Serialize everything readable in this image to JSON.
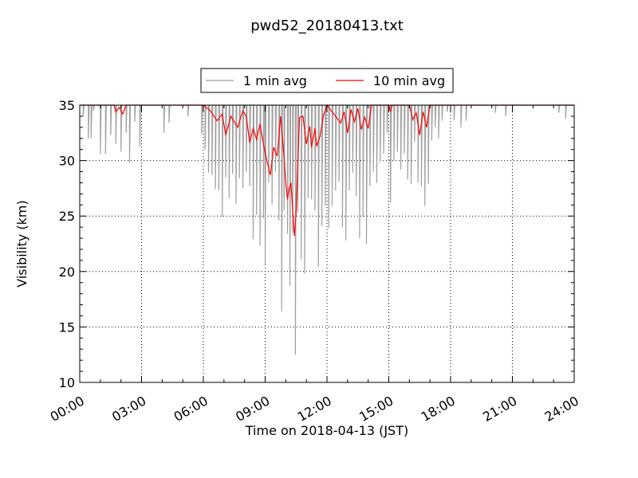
{
  "chart_data": {
    "type": "line",
    "title": "pwd52_20180413.txt",
    "xlabel": "Time on 2018-04-13 (JST)",
    "ylabel": "Visibility (km)",
    "xlim_hours": [
      0,
      24
    ],
    "ylim": [
      10,
      35
    ],
    "x_tick_labels": [
      "00:00",
      "03:00",
      "06:00",
      "09:00",
      "12:00",
      "15:00",
      "18:00",
      "21:00",
      "24:00"
    ],
    "y_ticks": [
      10,
      15,
      20,
      25,
      30,
      35
    ],
    "grid": true,
    "legend_position": "top-center, above plot",
    "colors": {
      "series_1min": "#a0a0a0",
      "series_10min": "#ff0000"
    },
    "series": [
      {
        "name": "1 min avg",
        "description_level": "visibility capped at 35 km; frequent short drops below the cap",
        "dips": [
          {
            "x": "00:10",
            "y": 34.0
          },
          {
            "x": "00:25",
            "y": 32.0
          },
          {
            "x": "00:33",
            "y": 32.0
          },
          {
            "x": "00:40",
            "y": 34.5
          },
          {
            "x": "01:00",
            "y": 30.6
          },
          {
            "x": "01:15",
            "y": 30.6
          },
          {
            "x": "01:30",
            "y": 32.3
          },
          {
            "x": "01:45",
            "y": 31.5
          },
          {
            "x": "02:00",
            "y": 30.8
          },
          {
            "x": "02:15",
            "y": 32.5
          },
          {
            "x": "02:25",
            "y": 29.8
          },
          {
            "x": "02:40",
            "y": 33.5
          },
          {
            "x": "02:55",
            "y": 31.3
          },
          {
            "x": "04:05",
            "y": 32.5
          },
          {
            "x": "04:20",
            "y": 33.4
          },
          {
            "x": "05:15",
            "y": 34.0
          },
          {
            "x": "05:55",
            "y": 32.4
          },
          {
            "x": "06:05",
            "y": 31.0
          },
          {
            "x": "06:15",
            "y": 28.9
          },
          {
            "x": "06:25",
            "y": 28.7
          },
          {
            "x": "06:35",
            "y": 27.4
          },
          {
            "x": "06:45",
            "y": 27.3
          },
          {
            "x": "06:55",
            "y": 24.9
          },
          {
            "x": "07:05",
            "y": 28.5
          },
          {
            "x": "07:15",
            "y": 26.6
          },
          {
            "x": "07:25",
            "y": 28.8
          },
          {
            "x": "07:35",
            "y": 26.1
          },
          {
            "x": "07:45",
            "y": 28.4
          },
          {
            "x": "07:55",
            "y": 27.5
          },
          {
            "x": "08:05",
            "y": 29.0
          },
          {
            "x": "08:15",
            "y": 27.7
          },
          {
            "x": "08:25",
            "y": 22.9
          },
          {
            "x": "08:35",
            "y": 25.1
          },
          {
            "x": "08:45",
            "y": 22.3
          },
          {
            "x": "08:55",
            "y": 24.8
          },
          {
            "x": "09:00",
            "y": 20.6
          },
          {
            "x": "09:10",
            "y": 28.0
          },
          {
            "x": "09:20",
            "y": 26.0
          },
          {
            "x": "09:30",
            "y": 29.0
          },
          {
            "x": "09:40",
            "y": 24.6
          },
          {
            "x": "09:48",
            "y": 16.4
          },
          {
            "x": "09:55",
            "y": 25.5
          },
          {
            "x": "10:05",
            "y": 23.4
          },
          {
            "x": "10:12",
            "y": 18.7
          },
          {
            "x": "10:20",
            "y": 23.5
          },
          {
            "x": "10:28",
            "y": 12.5
          },
          {
            "x": "10:35",
            "y": 25.4
          },
          {
            "x": "10:45",
            "y": 21.1
          },
          {
            "x": "10:55",
            "y": 19.8
          },
          {
            "x": "11:05",
            "y": 26.6
          },
          {
            "x": "11:15",
            "y": 26.5
          },
          {
            "x": "11:25",
            "y": 25.5
          },
          {
            "x": "11:35",
            "y": 20.4
          },
          {
            "x": "11:45",
            "y": 24.1
          },
          {
            "x": "11:55",
            "y": 25.9
          },
          {
            "x": "12:05",
            "y": 23.9
          },
          {
            "x": "12:15",
            "y": 25.9
          },
          {
            "x": "12:25",
            "y": 27.3
          },
          {
            "x": "12:35",
            "y": 28.1
          },
          {
            "x": "12:45",
            "y": 24.0
          },
          {
            "x": "12:55",
            "y": 22.8
          },
          {
            "x": "13:05",
            "y": 27.3
          },
          {
            "x": "13:15",
            "y": 28.9
          },
          {
            "x": "13:25",
            "y": 26.8
          },
          {
            "x": "13:35",
            "y": 23.0
          },
          {
            "x": "13:45",
            "y": 24.9
          },
          {
            "x": "13:55",
            "y": 22.5
          },
          {
            "x": "14:05",
            "y": 27.7
          },
          {
            "x": "14:15",
            "y": 29.0
          },
          {
            "x": "14:25",
            "y": 28.0
          },
          {
            "x": "14:35",
            "y": 29.9
          },
          {
            "x": "14:45",
            "y": 30.6
          },
          {
            "x": "14:55",
            "y": 32.5
          },
          {
            "x": "15:05",
            "y": 26.2
          },
          {
            "x": "15:15",
            "y": 30.0
          },
          {
            "x": "15:25",
            "y": 30.8
          },
          {
            "x": "15:35",
            "y": 29.2
          },
          {
            "x": "15:45",
            "y": 30.6
          },
          {
            "x": "15:55",
            "y": 28.3
          },
          {
            "x": "16:05",
            "y": 27.9
          },
          {
            "x": "16:15",
            "y": 31.7
          },
          {
            "x": "16:25",
            "y": 28.0
          },
          {
            "x": "16:35",
            "y": 27.7
          },
          {
            "x": "16:45",
            "y": 25.9
          },
          {
            "x": "16:55",
            "y": 27.9
          },
          {
            "x": "17:05",
            "y": 31.8
          },
          {
            "x": "17:15",
            "y": 33.0
          },
          {
            "x": "17:25",
            "y": 32.0
          },
          {
            "x": "17:35",
            "y": 33.6
          },
          {
            "x": "17:50",
            "y": 34.4
          },
          {
            "x": "18:10",
            "y": 33.6
          },
          {
            "x": "18:30",
            "y": 33.0
          },
          {
            "x": "18:45",
            "y": 33.6
          },
          {
            "x": "20:10",
            "y": 34.3
          },
          {
            "x": "20:40",
            "y": 34.0
          },
          {
            "x": "23:15",
            "y": 34.3
          },
          {
            "x": "23:35",
            "y": 33.8
          }
        ]
      },
      {
        "name": "10 min avg",
        "points": [
          {
            "x": "00:00",
            "y": 35.0
          },
          {
            "x": "01:40",
            "y": 35.0
          },
          {
            "x": "01:45",
            "y": 34.4
          },
          {
            "x": "01:55",
            "y": 34.8
          },
          {
            "x": "02:05",
            "y": 34.2
          },
          {
            "x": "02:15",
            "y": 35.0
          },
          {
            "x": "06:00",
            "y": 35.0
          },
          {
            "x": "06:20",
            "y": 34.5
          },
          {
            "x": "06:40",
            "y": 33.6
          },
          {
            "x": "06:55",
            "y": 34.2
          },
          {
            "x": "07:05",
            "y": 32.3
          },
          {
            "x": "07:20",
            "y": 34.0
          },
          {
            "x": "07:40",
            "y": 33.0
          },
          {
            "x": "07:55",
            "y": 34.5
          },
          {
            "x": "08:05",
            "y": 34.0
          },
          {
            "x": "08:15",
            "y": 31.6
          },
          {
            "x": "08:25",
            "y": 32.9
          },
          {
            "x": "08:35",
            "y": 31.9
          },
          {
            "x": "08:45",
            "y": 33.3
          },
          {
            "x": "08:55",
            "y": 31.5
          },
          {
            "x": "09:05",
            "y": 30.0
          },
          {
            "x": "09:15",
            "y": 28.7
          },
          {
            "x": "09:25",
            "y": 31.2
          },
          {
            "x": "09:35",
            "y": 30.4
          },
          {
            "x": "09:45",
            "y": 34.0
          },
          {
            "x": "09:55",
            "y": 30.3
          },
          {
            "x": "10:00",
            "y": 28.0
          },
          {
            "x": "10:05",
            "y": 26.5
          },
          {
            "x": "10:10",
            "y": 27.5
          },
          {
            "x": "10:15",
            "y": 28.0
          },
          {
            "x": "10:20",
            "y": 25.6
          },
          {
            "x": "10:25",
            "y": 23.2
          },
          {
            "x": "10:30",
            "y": 25.2
          },
          {
            "x": "10:35",
            "y": 29.7
          },
          {
            "x": "10:40",
            "y": 33.9
          },
          {
            "x": "10:50",
            "y": 34.0
          },
          {
            "x": "11:00",
            "y": 31.5
          },
          {
            "x": "11:10",
            "y": 33.1
          },
          {
            "x": "11:15",
            "y": 31.2
          },
          {
            "x": "11:25",
            "y": 32.9
          },
          {
            "x": "11:30",
            "y": 31.3
          },
          {
            "x": "11:40",
            "y": 32.2
          },
          {
            "x": "11:50",
            "y": 34.1
          },
          {
            "x": "12:00",
            "y": 35.0
          },
          {
            "x": "12:40",
            "y": 33.4
          },
          {
            "x": "12:50",
            "y": 34.4
          },
          {
            "x": "13:00",
            "y": 32.5
          },
          {
            "x": "13:10",
            "y": 34.6
          },
          {
            "x": "13:20",
            "y": 33.5
          },
          {
            "x": "13:30",
            "y": 34.7
          },
          {
            "x": "13:40",
            "y": 32.8
          },
          {
            "x": "13:50",
            "y": 33.9
          },
          {
            "x": "14:00",
            "y": 32.9
          },
          {
            "x": "14:10",
            "y": 35.0
          },
          {
            "x": "15:00",
            "y": 35.0
          },
          {
            "x": "15:05",
            "y": 34.4
          },
          {
            "x": "15:10",
            "y": 35.0
          },
          {
            "x": "16:00",
            "y": 35.0
          },
          {
            "x": "16:10",
            "y": 33.7
          },
          {
            "x": "16:20",
            "y": 34.3
          },
          {
            "x": "16:30",
            "y": 32.3
          },
          {
            "x": "16:40",
            "y": 34.4
          },
          {
            "x": "16:50",
            "y": 33.0
          },
          {
            "x": "17:00",
            "y": 35.0
          },
          {
            "x": "24:00",
            "y": 35.0
          }
        ]
      }
    ]
  }
}
